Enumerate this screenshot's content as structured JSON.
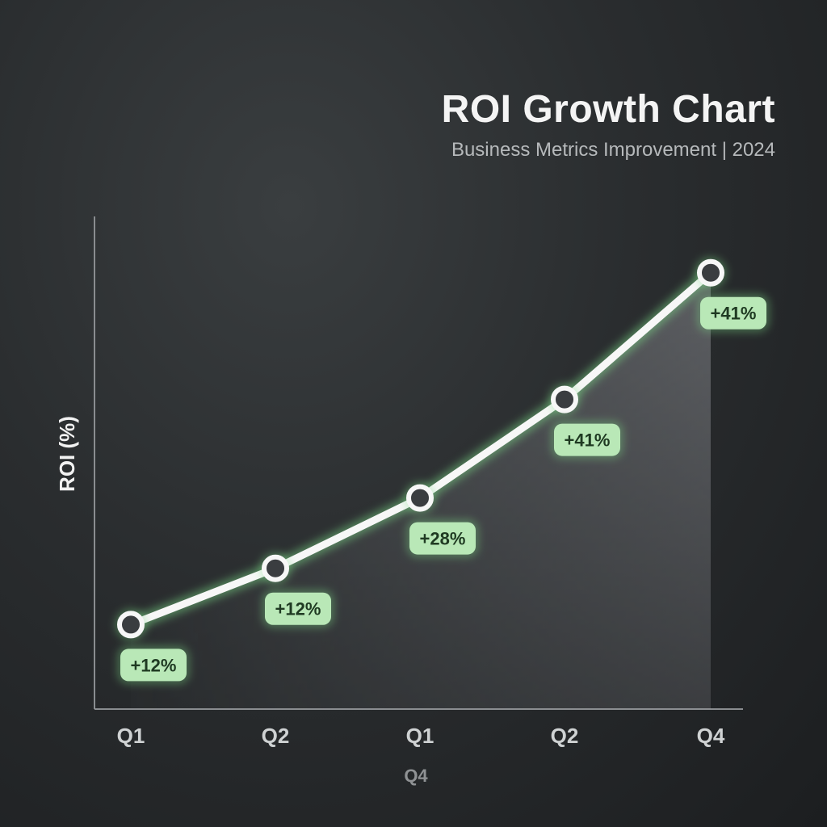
{
  "chart_data": {
    "type": "line",
    "title": "ROI Growth Chart",
    "subtitle": "Business Metrics Improvement | 2024",
    "xlabel": "Q4",
    "ylabel": "ROI (%)",
    "categories": [
      "Q1",
      "Q2",
      "Q1",
      "Q2",
      "Q4"
    ],
    "values": [
      12,
      20,
      30,
      44,
      62
    ],
    "data_labels": [
      "+12%",
      "+12%",
      "+28%",
      "+41%",
      "+41%"
    ],
    "ylim": [
      0,
      70
    ],
    "grid": false,
    "legend": false,
    "colors": {
      "line": "#f7f7f7",
      "glow": "#7fe08a",
      "area": "#a9aab0",
      "label_bg": "#b9e8b7",
      "label_text": "#1f3a22",
      "axis": "#8a8d90"
    }
  }
}
